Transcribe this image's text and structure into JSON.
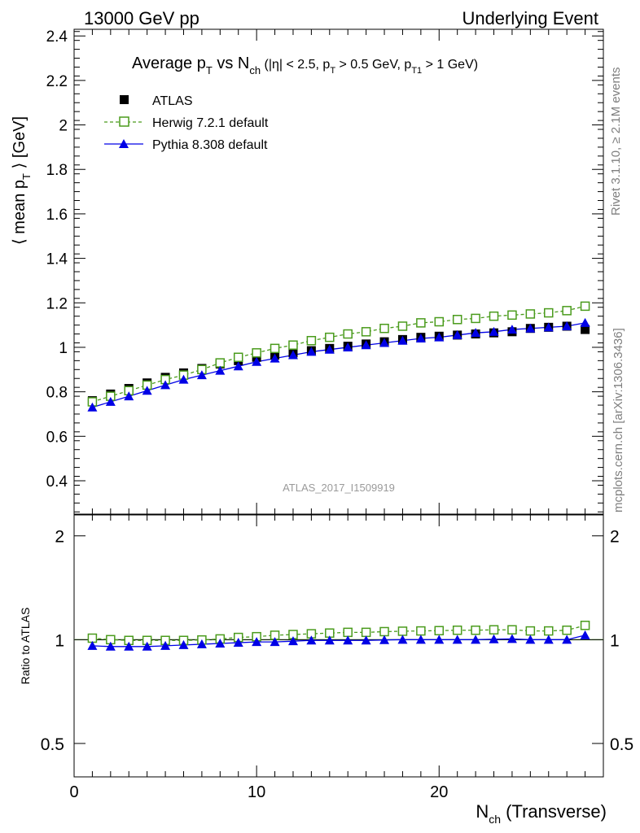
{
  "header": {
    "left": "13000 GeV pp",
    "right": "Underlying Event"
  },
  "title_parts": {
    "a": "Average p",
    "a_sub": "T",
    "b": " vs N",
    "b_sub": "ch",
    "c": " (|η| < 2.5, p",
    "c_sub": "T",
    "d": " > 0.5 GeV, p",
    "d_sub": "T1",
    "e": " > 1 GeV)"
  },
  "ylabel_parts": {
    "a": "⟨ mean p",
    "sub": "T",
    "b": " ⟩ [GeV]"
  },
  "ratio_ylabel": "Ratio to ATLAS",
  "xlabel_parts": {
    "a": "N",
    "sub": "ch",
    "b": " (Transverse)"
  },
  "side_texts": {
    "rivet": "Rivet 3.1.10, ≥ 2.1M events",
    "mcplots": "mcplots.cern.ch [arXiv:1306.3436]"
  },
  "watermark": "ATLAS_2017_I1509919",
  "legend": {
    "atlas": "ATLAS",
    "herwig": "Herwig 7.2.1 default",
    "pythia": "Pythia 8.308 default"
  },
  "colors": {
    "atlas": "#000000",
    "herwig": "#4a9b1c",
    "pythia": "#0000e6"
  },
  "chart_data": [
    {
      "type": "scatter",
      "panel": "main",
      "x": [
        1,
        2,
        3,
        4,
        5,
        6,
        7,
        8,
        9,
        10,
        11,
        12,
        13,
        14,
        15,
        16,
        17,
        18,
        19,
        20,
        21,
        22,
        23,
        24,
        25,
        26,
        27,
        28
      ],
      "xlim": [
        0,
        29
      ],
      "ylim": [
        0.25,
        2.43
      ],
      "yticks": [
        0.4,
        0.6,
        0.8,
        1,
        1.2,
        1.4,
        1.6,
        1.8,
        2,
        2.2,
        2.4
      ],
      "ytick_labels": [
        "0.4",
        "0.6",
        "0.8",
        "1",
        "1.2",
        "1.4",
        "1.6",
        "1.8",
        "2",
        "2.2",
        "2.4"
      ],
      "xticks": [
        0,
        10,
        20
      ],
      "xtick_labels": [
        "0",
        "10",
        "20"
      ],
      "series": [
        {
          "name": "ATLAS",
          "style": "markers",
          "values": [
            0.76,
            0.79,
            0.815,
            0.84,
            0.865,
            0.885,
            0.905,
            0.925,
            0.94,
            0.955,
            0.965,
            0.975,
            0.985,
            0.995,
            1.005,
            1.015,
            1.025,
            1.035,
            1.045,
            1.05,
            1.055,
            1.06,
            1.065,
            1.07,
            1.085,
            1.09,
            1.095,
            1.08
          ]
        },
        {
          "name": "Herwig 7.2.1 default",
          "style": "dashed-open-square",
          "values": [
            0.755,
            0.78,
            0.805,
            0.83,
            0.855,
            0.875,
            0.9,
            0.93,
            0.955,
            0.975,
            0.995,
            1.01,
            1.03,
            1.045,
            1.06,
            1.07,
            1.085,
            1.095,
            1.11,
            1.115,
            1.125,
            1.13,
            1.14,
            1.145,
            1.15,
            1.155,
            1.165,
            1.185
          ]
        },
        {
          "name": "Pythia 8.308 default",
          "style": "line-filled-triangle",
          "values": [
            0.73,
            0.755,
            0.78,
            0.805,
            0.83,
            0.855,
            0.875,
            0.895,
            0.915,
            0.935,
            0.95,
            0.965,
            0.98,
            0.99,
            1.0,
            1.01,
            1.02,
            1.03,
            1.04,
            1.045,
            1.055,
            1.065,
            1.07,
            1.08,
            1.085,
            1.09,
            1.095,
            1.11
          ]
        }
      ]
    },
    {
      "type": "scatter",
      "panel": "ratio",
      "x": [
        1,
        2,
        3,
        4,
        5,
        6,
        7,
        8,
        9,
        10,
        11,
        12,
        13,
        14,
        15,
        16,
        17,
        18,
        19,
        20,
        21,
        22,
        23,
        24,
        25,
        26,
        27,
        28
      ],
      "xlim": [
        0,
        29
      ],
      "ylim": [
        0.4,
        2.3
      ],
      "log_y": true,
      "yticks": [
        0.5,
        1,
        2
      ],
      "ytick_labels": [
        "0.5",
        "1",
        "2"
      ],
      "series": [
        {
          "name": "Herwig 7.2.1 default",
          "style": "dashed-open-square",
          "values": [
            1.01,
            1.0,
            0.995,
            0.995,
            0.995,
            0.995,
            0.998,
            1.005,
            1.015,
            1.02,
            1.03,
            1.035,
            1.04,
            1.045,
            1.05,
            1.05,
            1.055,
            1.058,
            1.06,
            1.062,
            1.065,
            1.065,
            1.068,
            1.068,
            1.06,
            1.06,
            1.065,
            1.1
          ]
        },
        {
          "name": "Pythia 8.308 default",
          "style": "line-filled-triangle",
          "values": [
            0.96,
            0.955,
            0.955,
            0.955,
            0.96,
            0.965,
            0.97,
            0.975,
            0.98,
            0.985,
            0.985,
            0.99,
            0.995,
            0.995,
            0.995,
            0.995,
            0.998,
            1.0,
            1.0,
            1.0,
            1.0,
            1.0,
            1.003,
            1.005,
            1.0,
            1.0,
            1.0,
            1.03
          ]
        }
      ]
    }
  ]
}
